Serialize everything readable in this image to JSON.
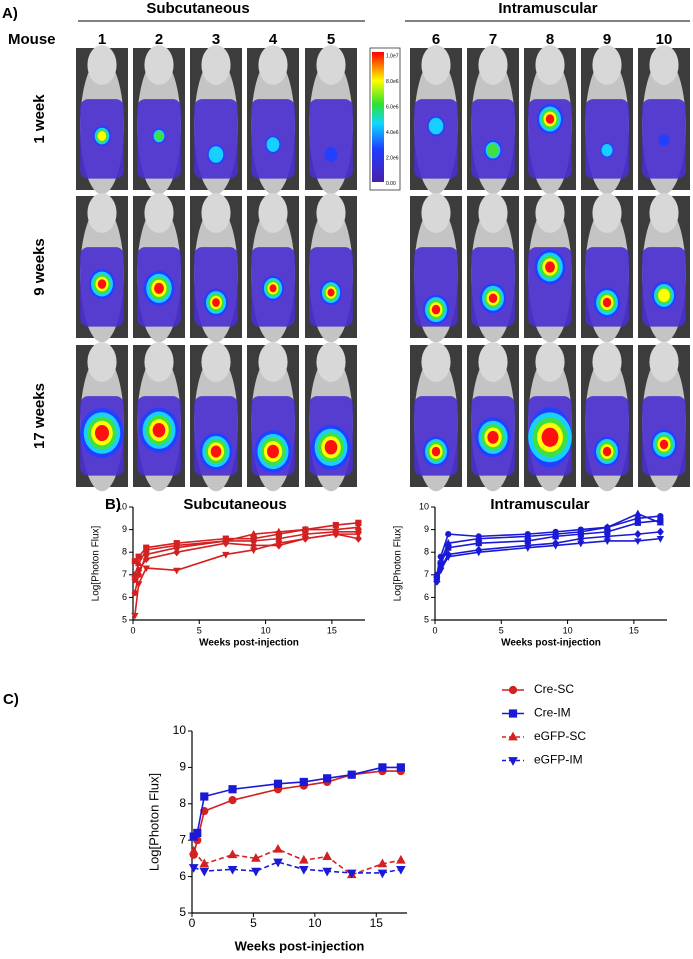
{
  "panel_a": {
    "label": "A)",
    "mouse_label": "Mouse",
    "groups": [
      {
        "title": "Subcutaneous",
        "mice": [
          "1",
          "2",
          "3",
          "4",
          "5"
        ]
      },
      {
        "title": "Intramuscular",
        "mice": [
          "6",
          "7",
          "8",
          "9",
          "10"
        ]
      }
    ],
    "rows": [
      "1 week",
      "9 weeks",
      "17 weeks"
    ],
    "scale_labels": [
      "1.0e7",
      "8.0e6",
      "6.0e6",
      "4.0e6",
      "2.0e6",
      "0.00"
    ]
  },
  "chart_data": [
    {
      "type": "line",
      "label": "B)",
      "title": "Subcutaneous",
      "xlabel": "Weeks post-injection",
      "ylabel": "Log[Photon Flux]",
      "x": [
        0.14,
        0.43,
        1,
        3.3,
        7,
        9.1,
        11,
        13,
        15.3,
        17
      ],
      "xlim": [
        0,
        17.5
      ],
      "ylim": [
        5,
        10
      ],
      "xticks": [
        0,
        5,
        10,
        15
      ],
      "yticks": [
        5,
        6,
        7,
        8,
        9,
        10
      ],
      "series": [
        {
          "color": "#d42020",
          "marker": "square",
          "values": [
            7.6,
            7.8,
            8.2,
            8.4,
            8.6,
            8.6,
            8.8,
            9.0,
            9.2,
            9.3
          ]
        },
        {
          "color": "#d42020",
          "marker": "triangle-up",
          "values": [
            7.0,
            7.5,
            8.1,
            8.3,
            8.5,
            8.8,
            8.9,
            9.0,
            9.0,
            9.1
          ]
        },
        {
          "color": "#d42020",
          "marker": "circle",
          "values": [
            6.2,
            7.0,
            7.9,
            8.2,
            8.5,
            8.5,
            8.6,
            8.8,
            8.9,
            8.9
          ]
        },
        {
          "color": "#d42020",
          "marker": "triangle-down",
          "values": [
            5.2,
            6.6,
            7.3,
            7.2,
            7.9,
            8.1,
            8.4,
            8.6,
            8.8,
            8.8
          ]
        },
        {
          "color": "#d42020",
          "marker": "diamond",
          "values": [
            6.8,
            7.2,
            7.7,
            8.0,
            8.4,
            8.3,
            8.3,
            8.6,
            8.8,
            8.6
          ]
        }
      ]
    },
    {
      "type": "line",
      "title": "Intramuscular",
      "xlabel": "Weeks post-injection",
      "ylabel": "Log[Photon Flux]",
      "x": [
        0.14,
        0.43,
        1,
        3.3,
        7,
        9.1,
        11,
        13,
        15.3,
        17
      ],
      "xlim": [
        0,
        17.5
      ],
      "ylim": [
        5,
        10
      ],
      "xticks": [
        0,
        5,
        10,
        15
      ],
      "yticks": [
        5,
        6,
        7,
        8,
        9,
        10
      ],
      "series": [
        {
          "color": "#1a1ad6",
          "marker": "circle",
          "values": [
            7.0,
            7.8,
            8.8,
            8.7,
            8.8,
            8.9,
            9.0,
            9.1,
            9.5,
            9.6
          ]
        },
        {
          "color": "#1a1ad6",
          "marker": "triangle-up",
          "values": [
            6.8,
            7.6,
            8.4,
            8.6,
            8.7,
            8.8,
            8.9,
            9.1,
            9.7,
            9.3
          ]
        },
        {
          "color": "#1a1ad6",
          "marker": "square",
          "values": [
            6.9,
            7.5,
            8.2,
            8.4,
            8.5,
            8.7,
            8.8,
            8.9,
            9.3,
            9.4
          ]
        },
        {
          "color": "#1a1ad6",
          "marker": "diamond",
          "values": [
            6.7,
            7.3,
            7.9,
            8.1,
            8.3,
            8.4,
            8.6,
            8.7,
            8.8,
            8.9
          ]
        },
        {
          "color": "#1a1ad6",
          "marker": "triangle-down",
          "values": [
            6.8,
            7.2,
            7.8,
            8.0,
            8.2,
            8.3,
            8.4,
            8.5,
            8.5,
            8.6
          ]
        }
      ]
    },
    {
      "type": "line",
      "label": "C)",
      "xlabel": "Weeks post-injection",
      "ylabel": "Log[Photon Flux]",
      "xlim": [
        0,
        17.5
      ],
      "ylim": [
        5,
        10
      ],
      "xticks": [
        0,
        5,
        10,
        15
      ],
      "yticks": [
        5,
        6,
        7,
        8,
        9,
        10
      ],
      "legend": "right",
      "series": [
        {
          "name": "Cre-SC",
          "color": "#d42020",
          "marker": "circle",
          "dashed": false,
          "x": [
            0.14,
            0.43,
            1,
            3.3,
            7,
            9.1,
            11,
            13,
            15.5,
            17
          ],
          "values": [
            6.6,
            7.0,
            7.8,
            8.1,
            8.4,
            8.5,
            8.6,
            8.8,
            8.9,
            8.9
          ]
        },
        {
          "name": "Cre-IM",
          "color": "#1a1ad6",
          "marker": "square",
          "dashed": false,
          "x": [
            0.14,
            0.43,
            1,
            3.3,
            7,
            9.1,
            11,
            13,
            15.5,
            17
          ],
          "values": [
            7.1,
            7.2,
            8.2,
            8.4,
            8.55,
            8.6,
            8.7,
            8.8,
            9.0,
            9.0
          ]
        },
        {
          "name": "eGFP-SC",
          "color": "#d42020",
          "marker": "triangle-up",
          "dashed": true,
          "x": [
            0.14,
            1,
            3.3,
            5.2,
            7,
            9.1,
            11,
            13,
            15.5,
            17
          ],
          "values": [
            6.7,
            6.35,
            6.6,
            6.5,
            6.75,
            6.45,
            6.55,
            6.05,
            6.35,
            6.45
          ]
        },
        {
          "name": "eGFP-IM",
          "color": "#1a1ad6",
          "marker": "triangle-down",
          "dashed": true,
          "x": [
            0.14,
            1,
            3.3,
            5.2,
            7,
            9.1,
            11,
            13,
            15.5,
            17
          ],
          "values": [
            6.25,
            6.15,
            6.2,
            6.15,
            6.4,
            6.2,
            6.15,
            6.1,
            6.1,
            6.2
          ]
        }
      ]
    }
  ]
}
